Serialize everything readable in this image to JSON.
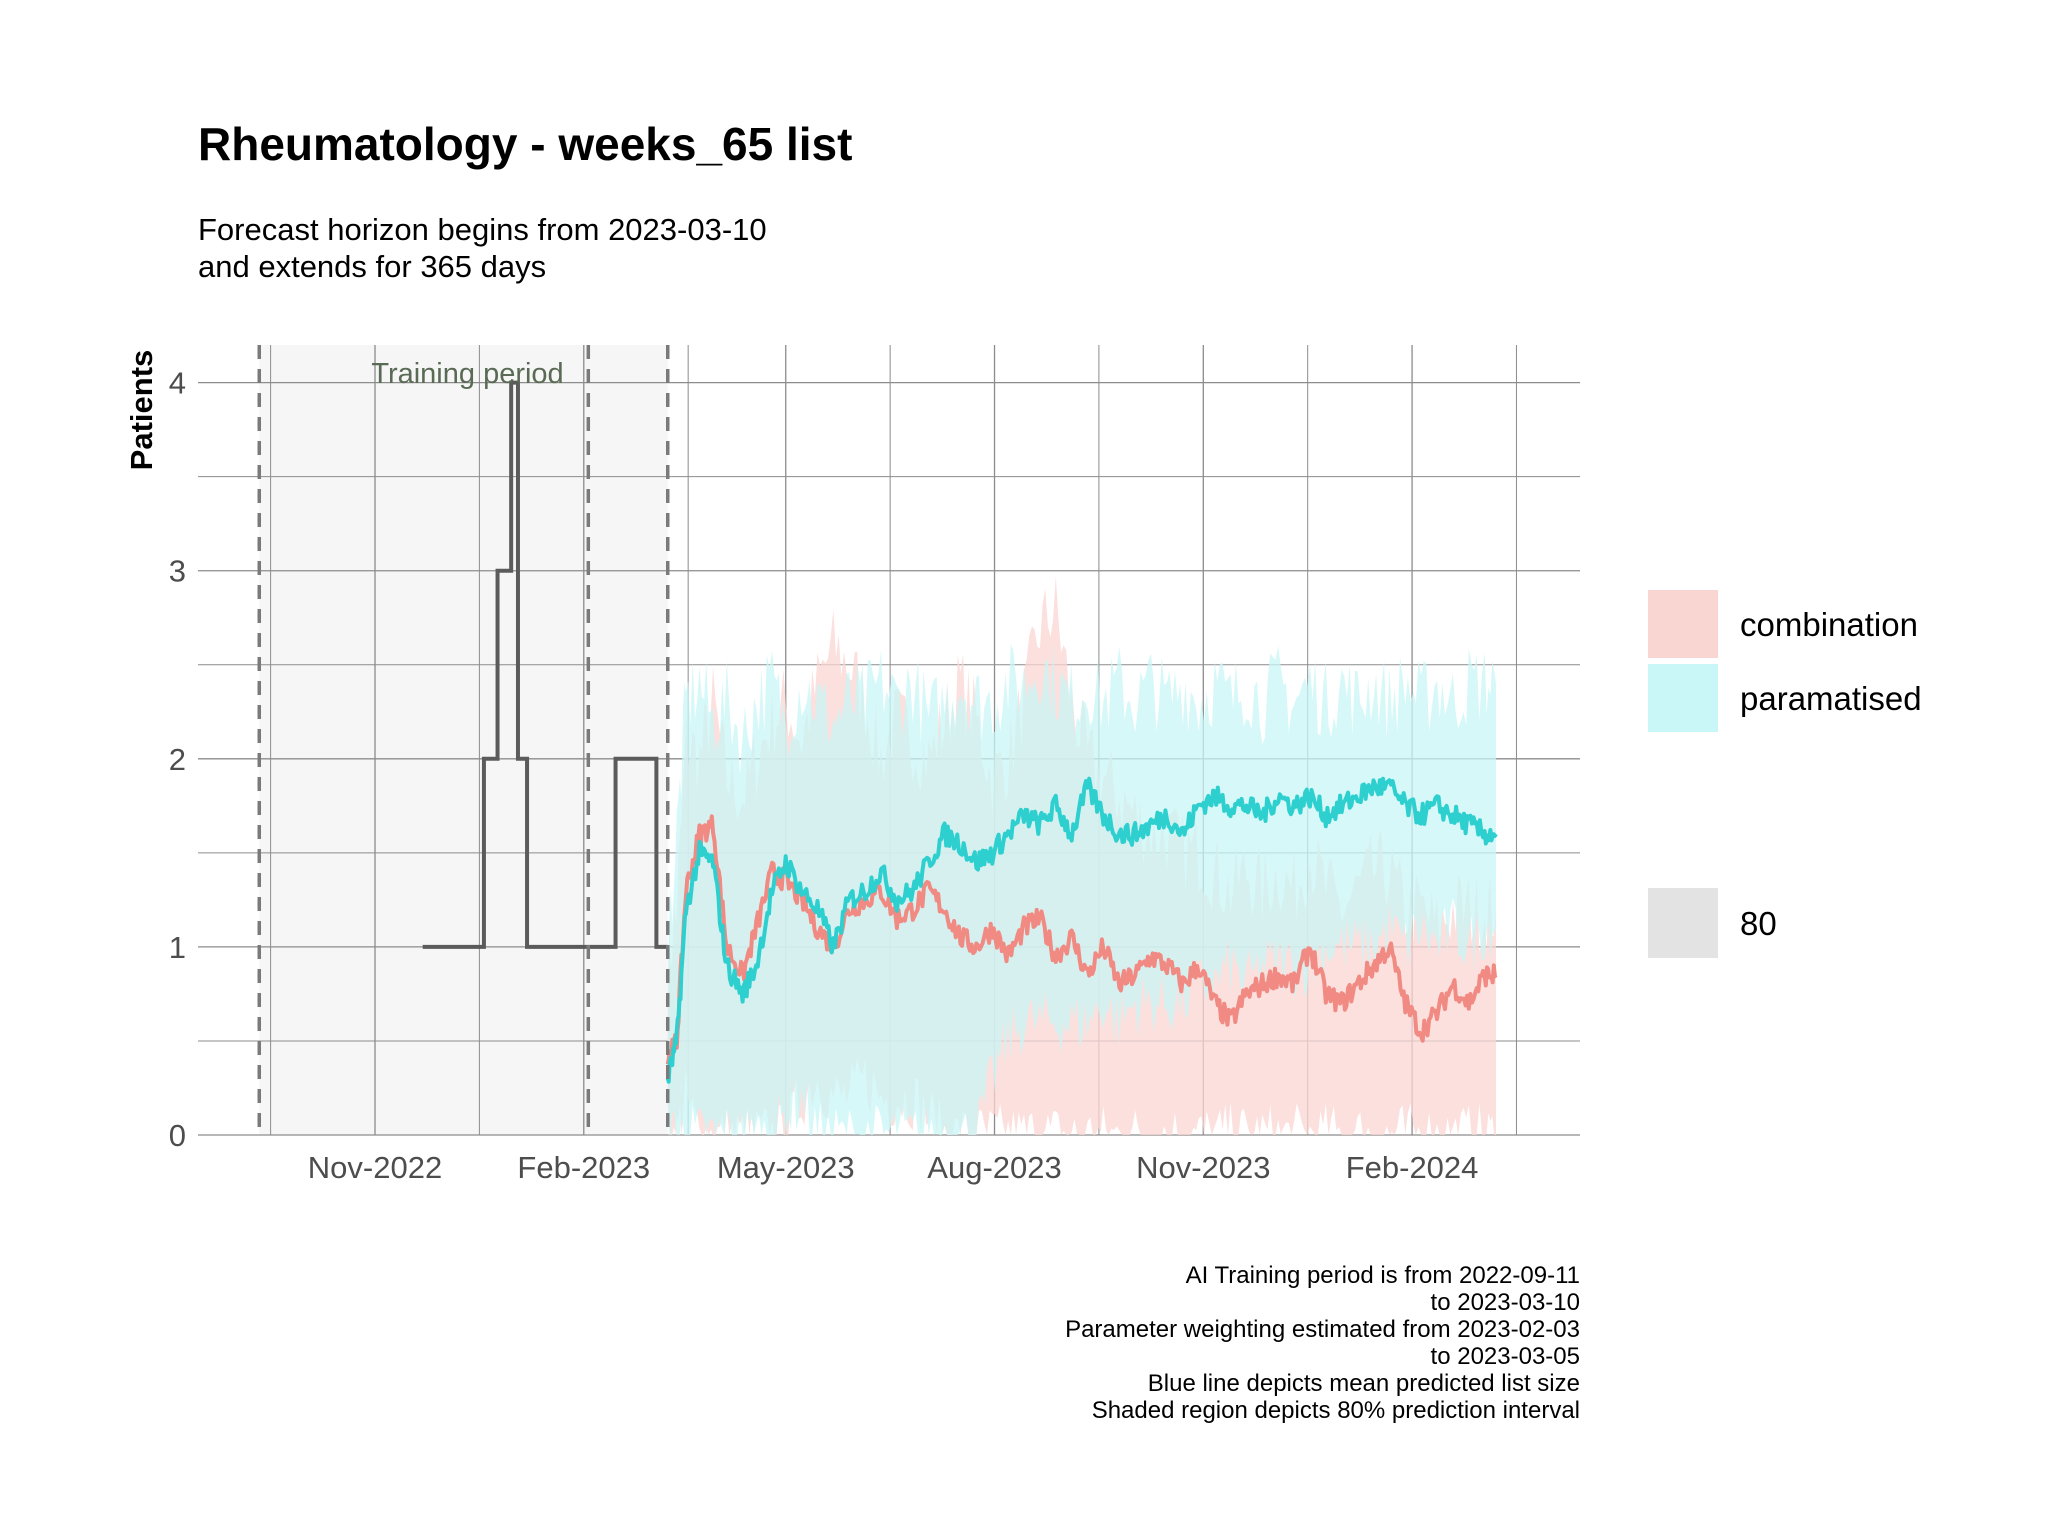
{
  "colors": {
    "historical": "#5b5b5b",
    "combination_line": "#f08a82",
    "combination_fill": "#fad6d3",
    "paramatised_line": "#2ecfcf",
    "paramatised_fill": "#c9f6f6",
    "interval_key": "#e3e3e3",
    "training_bg": "#f6f6f6",
    "grid": "#8c8c8c"
  },
  "chart_data": {
    "type": "line",
    "title": "Rheumatology - weeks_65 list",
    "subtitle_lines": [
      "Forecast horizon begins from 2023-03-10",
      "and extends for 365 days"
    ],
    "ylabel": "Patients",
    "xlabel": "",
    "annotation": "Training period",
    "ylim": [
      0,
      4.2
    ],
    "yticks": [
      0,
      1,
      2,
      3,
      4
    ],
    "xlim": [
      "2022-08-15",
      "2024-04-15"
    ],
    "xticks": [
      {
        "date": "2022-11-01",
        "label": "Nov-2022"
      },
      {
        "date": "2023-02-01",
        "label": "Feb-2023"
      },
      {
        "date": "2023-05-01",
        "label": "May-2023"
      },
      {
        "date": "2023-08-01",
        "label": "Aug-2023"
      },
      {
        "date": "2023-11-01",
        "label": "Nov-2023"
      },
      {
        "date": "2024-02-01",
        "label": "Feb-2024"
      }
    ],
    "training_period": [
      "2022-09-11",
      "2023-03-10"
    ],
    "vlines": [
      "2022-09-11",
      "2023-02-03",
      "2023-03-10"
    ],
    "historical": {
      "name": "observed",
      "x": [
        "2022-11-22",
        "2022-12-19",
        "2022-12-25",
        "2022-12-31",
        "2023-01-03",
        "2023-01-07",
        "2023-02-15",
        "2023-03-05",
        "2023-03-10"
      ],
      "y": [
        1,
        2,
        3,
        4,
        2,
        1,
        2,
        1,
        1
      ]
    },
    "series": [
      {
        "name": "combination",
        "x": [
          "2023-03-10",
          "2023-03-14",
          "2023-03-18",
          "2023-03-24",
          "2023-03-30",
          "2023-04-05",
          "2023-04-12",
          "2023-04-18",
          "2023-04-25",
          "2023-05-01",
          "2023-05-08",
          "2023-05-15",
          "2023-05-22",
          "2023-05-29",
          "2023-06-05",
          "2023-06-12",
          "2023-06-19",
          "2023-06-26",
          "2023-07-03",
          "2023-07-10",
          "2023-07-17",
          "2023-07-24",
          "2023-07-31",
          "2023-08-07",
          "2023-08-14",
          "2023-08-21",
          "2023-08-28",
          "2023-09-04",
          "2023-09-11",
          "2023-09-18",
          "2023-09-25",
          "2023-10-02",
          "2023-10-09",
          "2023-10-16",
          "2023-10-23",
          "2023-10-30",
          "2023-11-06",
          "2023-11-13",
          "2023-11-20",
          "2023-11-27",
          "2023-12-04",
          "2023-12-11",
          "2023-12-18",
          "2023-12-25",
          "2024-01-01",
          "2024-01-08",
          "2024-01-15",
          "2024-01-22",
          "2024-01-29",
          "2024-02-05",
          "2024-02-12",
          "2024-02-19",
          "2024-02-26",
          "2024-03-04",
          "2024-03-09"
        ],
        "mean": [
          0.4,
          0.5,
          1.3,
          1.6,
          1.65,
          1.0,
          0.85,
          1.1,
          1.4,
          1.35,
          1.25,
          1.1,
          1.0,
          1.2,
          1.25,
          1.3,
          1.15,
          1.2,
          1.3,
          1.2,
          1.05,
          1.0,
          1.1,
          0.95,
          1.1,
          1.15,
          0.95,
          1.05,
          0.85,
          1.0,
          0.8,
          0.85,
          0.95,
          0.9,
          0.8,
          0.9,
          0.7,
          0.6,
          0.75,
          0.8,
          0.85,
          0.8,
          1.0,
          0.75,
          0.7,
          0.8,
          0.9,
          1.0,
          0.7,
          0.55,
          0.65,
          0.8,
          0.7,
          0.85,
          0.85
        ],
        "lower": [
          0,
          0,
          0.2,
          0,
          0,
          0,
          0,
          0,
          0,
          0,
          0.2,
          0.3,
          0.2,
          0.2,
          0.3,
          0.2,
          0.2,
          0.2,
          0.1,
          0,
          0,
          0,
          0,
          0,
          0,
          0,
          0,
          0,
          0,
          0,
          0,
          0,
          0,
          0,
          0,
          0,
          0,
          0,
          0,
          0,
          0,
          0,
          0,
          0,
          0,
          0,
          0,
          0,
          0,
          0,
          0,
          0,
          0,
          0,
          0
        ],
        "upper": [
          0.9,
          1.2,
          2.1,
          2.0,
          2.3,
          1.9,
          1.8,
          2.0,
          2.2,
          2.3,
          2.1,
          2.4,
          2.6,
          2.5,
          2.3,
          2.0,
          2.2,
          2.1,
          2.0,
          2.2,
          2.4,
          2.2,
          1.9,
          2.0,
          2.3,
          2.7,
          2.8,
          2.3,
          2.0,
          1.9,
          1.8,
          1.7,
          1.6,
          1.6,
          1.5,
          1.5,
          1.4,
          1.3,
          1.4,
          1.3,
          1.4,
          1.3,
          1.5,
          1.3,
          1.2,
          1.3,
          1.4,
          1.4,
          1.2,
          1.2,
          1.1,
          1.2,
          1.2,
          1.2,
          1.2
        ]
      },
      {
        "name": "paramatised",
        "x": [
          "2023-03-10",
          "2023-03-14",
          "2023-03-18",
          "2023-03-24",
          "2023-03-30",
          "2023-04-05",
          "2023-04-12",
          "2023-04-18",
          "2023-04-25",
          "2023-05-01",
          "2023-05-08",
          "2023-05-15",
          "2023-05-22",
          "2023-05-29",
          "2023-06-05",
          "2023-06-12",
          "2023-06-19",
          "2023-06-26",
          "2023-07-03",
          "2023-07-10",
          "2023-07-17",
          "2023-07-24",
          "2023-07-31",
          "2023-08-07",
          "2023-08-14",
          "2023-08-21",
          "2023-08-28",
          "2023-09-04",
          "2023-09-11",
          "2023-09-18",
          "2023-09-25",
          "2023-10-02",
          "2023-10-09",
          "2023-10-16",
          "2023-10-23",
          "2023-10-30",
          "2023-11-06",
          "2023-11-13",
          "2023-11-20",
          "2023-11-27",
          "2023-12-04",
          "2023-12-11",
          "2023-12-18",
          "2023-12-25",
          "2024-01-01",
          "2024-01-08",
          "2024-01-15",
          "2024-01-22",
          "2024-01-29",
          "2024-02-05",
          "2024-02-12",
          "2024-02-19",
          "2024-02-26",
          "2024-03-04",
          "2024-03-09"
        ],
        "mean": [
          0.3,
          0.5,
          1.2,
          1.5,
          1.45,
          0.9,
          0.75,
          0.9,
          1.3,
          1.45,
          1.3,
          1.2,
          1.0,
          1.25,
          1.3,
          1.4,
          1.25,
          1.3,
          1.45,
          1.6,
          1.55,
          1.45,
          1.5,
          1.6,
          1.7,
          1.65,
          1.75,
          1.6,
          1.85,
          1.7,
          1.6,
          1.6,
          1.65,
          1.7,
          1.6,
          1.75,
          1.8,
          1.75,
          1.75,
          1.7,
          1.8,
          1.75,
          1.8,
          1.7,
          1.75,
          1.8,
          1.85,
          1.85,
          1.75,
          1.7,
          1.75,
          1.7,
          1.65,
          1.6,
          1.6
        ],
        "lower": [
          0,
          0,
          0,
          0,
          0,
          0,
          0,
          0,
          0,
          0.1,
          0.2,
          0,
          0,
          0,
          0,
          0,
          0,
          0,
          0,
          0,
          0,
          0,
          0.3,
          0.5,
          0.6,
          0.6,
          0.6,
          0.6,
          0.6,
          0.7,
          0.6,
          0.7,
          0.7,
          0.7,
          0.7,
          0.8,
          0.8,
          0.9,
          0.8,
          0.9,
          0.9,
          0.9,
          0.9,
          1.0,
          1.0,
          1.0,
          1.0,
          1.1,
          1.0,
          1.1,
          1.0,
          1.1,
          1.0,
          1.1,
          1.1
        ],
        "upper": [
          1.0,
          1.6,
          2.3,
          2.4,
          2.2,
          2.3,
          2.1,
          2.3,
          2.4,
          2.2,
          2.4,
          2.3,
          2.2,
          2.3,
          2.3,
          2.4,
          2.3,
          2.4,
          2.2,
          2.3,
          2.4,
          2.3,
          2.3,
          2.4,
          2.4,
          2.5,
          2.4,
          2.3,
          2.4,
          2.3,
          2.4,
          2.3,
          2.4,
          2.3,
          2.4,
          2.3,
          2.4,
          2.3,
          2.4,
          2.3,
          2.4,
          2.3,
          2.4,
          2.3,
          2.4,
          2.3,
          2.4,
          2.3,
          2.4,
          2.3,
          2.4,
          2.3,
          2.4,
          2.4,
          2.4
        ]
      }
    ],
    "legend": {
      "position": "right",
      "items": [
        "combination",
        "paramatised"
      ],
      "interval_items": [
        "80"
      ]
    },
    "caption_lines": [
      "AI Training period is from 2022-09-11",
      "to 2023-03-10",
      "Parameter weighting estimated from 2023-02-03",
      "to 2023-03-05",
      "Blue line depicts mean predicted list size",
      "Shaded region depicts 80% prediction interval"
    ]
  }
}
